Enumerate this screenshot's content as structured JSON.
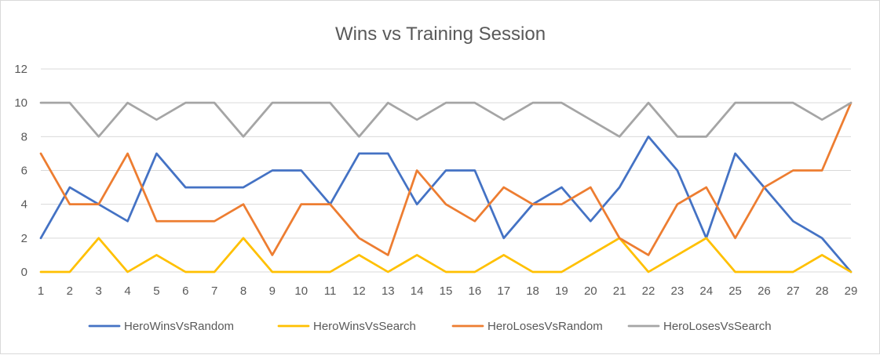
{
  "chart_data": {
    "type": "line",
    "title": "Wins vs Training Session",
    "xlabel": "",
    "ylabel": "",
    "x": [
      "1",
      "2",
      "3",
      "4",
      "5",
      "6",
      "7",
      "8",
      "9",
      "10",
      "11",
      "12",
      "13",
      "14",
      "15",
      "16",
      "17",
      "18",
      "19",
      "20",
      "21",
      "22",
      "23",
      "24",
      "25",
      "26",
      "27",
      "28",
      "29"
    ],
    "ylim": [
      0,
      12
    ],
    "yticks": [
      "0",
      "2",
      "4",
      "6",
      "8",
      "10",
      "12"
    ],
    "grid": "horizontal",
    "legend_position": "bottom",
    "series": [
      {
        "name": "HeroWinsVsRandom",
        "color": "#4472c4",
        "values": [
          2,
          5,
          4,
          3,
          7,
          5,
          5,
          5,
          6,
          6,
          4,
          7,
          7,
          4,
          6,
          6,
          2,
          4,
          5,
          3,
          5,
          8,
          6,
          2,
          7,
          5,
          3,
          2,
          0
        ]
      },
      {
        "name": "HeroWinsVsSearch",
        "color": "#ffc000",
        "values": [
          0,
          0,
          2,
          0,
          1,
          0,
          0,
          2,
          0,
          0,
          0,
          1,
          0,
          1,
          0,
          0,
          1,
          0,
          0,
          1,
          2,
          0,
          1,
          2,
          0,
          0,
          0,
          1,
          0
        ]
      },
      {
        "name": "HeroLosesVsRandom",
        "color": "#ed7d31",
        "values": [
          7,
          4,
          4,
          7,
          3,
          3,
          3,
          4,
          1,
          4,
          4,
          2,
          1,
          6,
          4,
          3,
          5,
          4,
          4,
          5,
          2,
          1,
          4,
          5,
          2,
          5,
          6,
          6,
          10
        ]
      },
      {
        "name": "HeroLosesVsSearch",
        "color": "#a5a5a5",
        "values": [
          10,
          10,
          8,
          10,
          9,
          10,
          10,
          8,
          10,
          10,
          10,
          8,
          10,
          9,
          10,
          10,
          9,
          10,
          10,
          9,
          8,
          10,
          8,
          8,
          10,
          10,
          10,
          9,
          10
        ]
      }
    ]
  }
}
